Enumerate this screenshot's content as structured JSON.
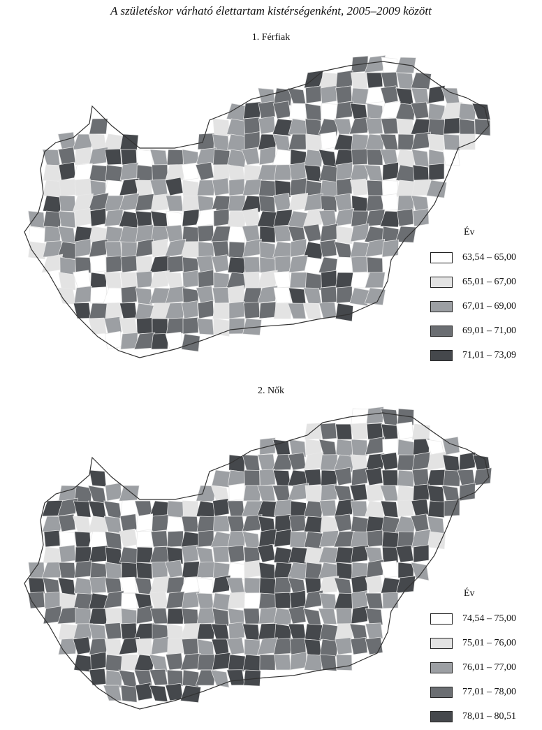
{
  "title": "A születéskor várható élettartam kistérségenként, 2005–2009 között",
  "maps": [
    {
      "subtitle": "1. Férfiak",
      "legend": {
        "title": "Év",
        "classes": [
          {
            "label": "63,54 – 65,00",
            "color": "#ffffff"
          },
          {
            "label": "65,01 – 67,00",
            "color": "#e3e3e3"
          },
          {
            "label": "67,01 – 69,00",
            "color": "#9c9fa3"
          },
          {
            "label": "69,01 – 71,00",
            "color": "#6b6e72"
          },
          {
            "label": "71,01 – 73,09",
            "color": "#45484c"
          }
        ]
      }
    },
    {
      "subtitle": "2. Nők",
      "legend": {
        "title": "Év",
        "classes": [
          {
            "label": "74,54 – 75,00",
            "color": "#ffffff"
          },
          {
            "label": "75,01 – 76,00",
            "color": "#e3e3e3"
          },
          {
            "label": "76,01 – 77,00",
            "color": "#9c9fa3"
          },
          {
            "label": "77,01 – 78,00",
            "color": "#6b6e72"
          },
          {
            "label": "78,01 – 80,51",
            "color": "#45484c"
          }
        ]
      }
    }
  ]
}
